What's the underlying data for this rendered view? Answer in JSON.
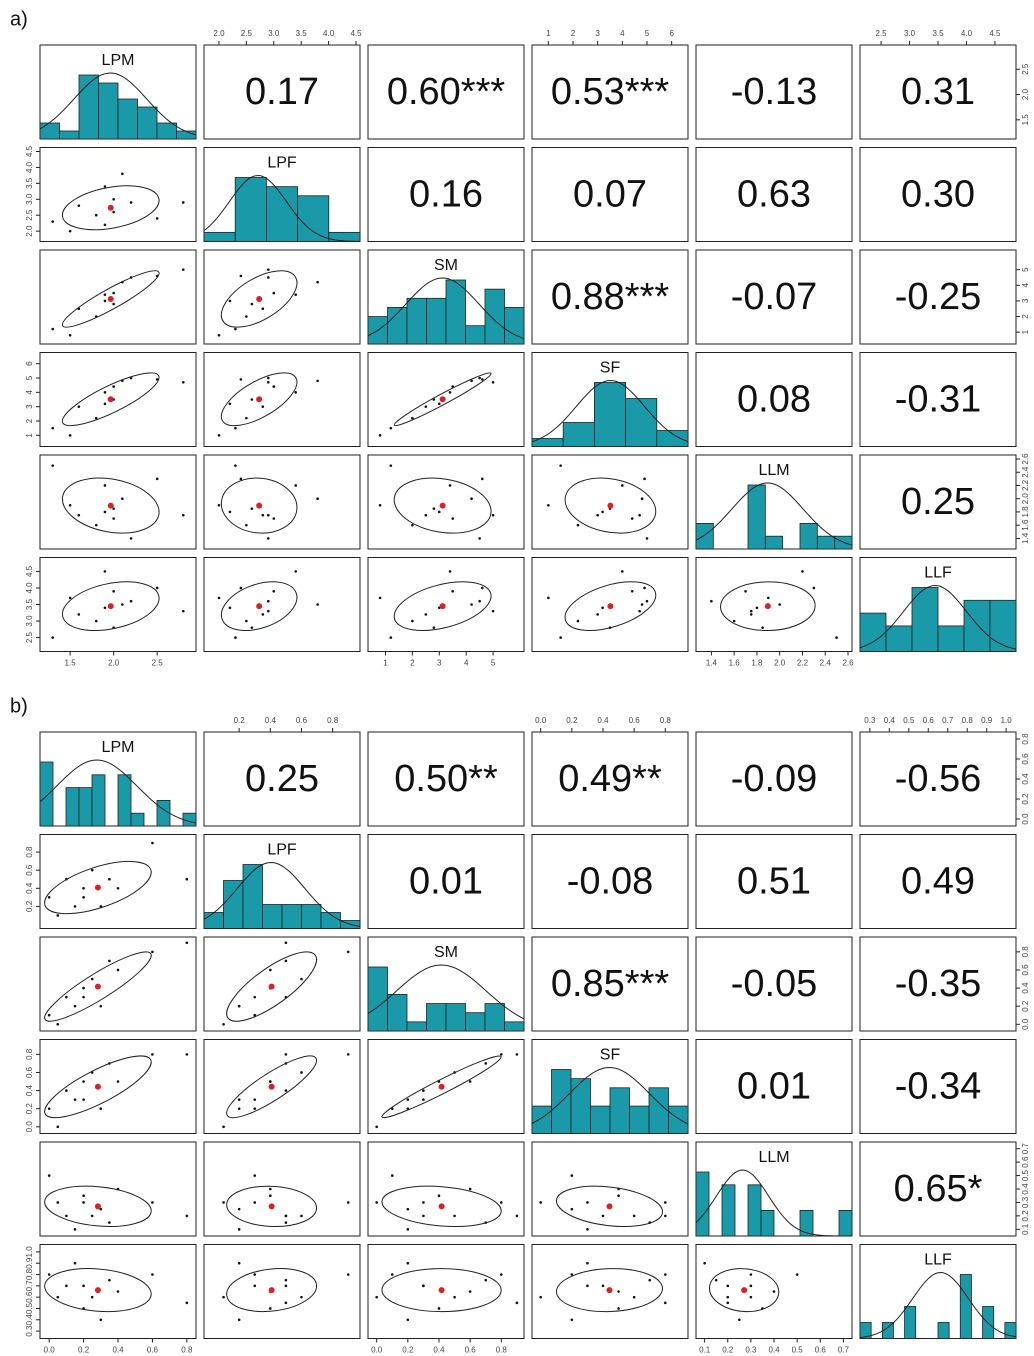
{
  "panels": [
    {
      "label": "a)",
      "variables": [
        {
          "name": "LPM",
          "lim": [
            1.2,
            2.9
          ],
          "ticks": [
            {
              "value": 1.5,
              "label": "1.5"
            },
            {
              "value": 2,
              "label": "2.0"
            },
            {
              "value": 2.5,
              "label": "2.5"
            }
          ],
          "values": [
            1.3,
            1.5,
            1.6,
            1.8,
            1.9,
            1.9,
            2.0,
            2.0,
            2.1,
            2.2,
            2.5,
            2.8
          ],
          "hist": [
            2,
            1,
            8,
            7,
            5,
            4,
            2,
            1
          ]
        },
        {
          "name": "LPF",
          "lim": [
            1.8,
            4.5
          ],
          "ticks": [
            {
              "value": 2,
              "label": "2.0"
            },
            {
              "value": 2.5,
              "label": "2.5"
            },
            {
              "value": 3,
              "label": "3.0"
            },
            {
              "value": 3.5,
              "label": "3.5"
            },
            {
              "value": 4,
              "label": "4.0"
            },
            {
              "value": 4.5,
              "label": "4.5"
            }
          ],
          "values": [
            2.3,
            2.0,
            2.8,
            2.5,
            3.4,
            2.2,
            3.0,
            2.6,
            3.8,
            2.9,
            2.4,
            2.9
          ],
          "hist": [
            1,
            7,
            6,
            5,
            1
          ]
        },
        {
          "name": "SM",
          "lim": [
            0.5,
            6
          ],
          "ticks": [
            1,
            2,
            3,
            4,
            5
          ],
          "values": [
            1.2,
            0.8,
            2.5,
            2.0,
            3.4,
            3.0,
            3.5,
            2.8,
            4.2,
            4.5,
            4.6,
            5.0
          ],
          "hist": [
            3,
            4,
            5,
            5,
            7,
            2,
            6,
            4
          ]
        },
        {
          "name": "SF",
          "lim": [
            0.5,
            6.5
          ],
          "ticks": [
            1,
            2,
            3,
            4,
            5,
            6
          ],
          "values": [
            1.5,
            1.0,
            3.0,
            2.2,
            4.0,
            3.2,
            4.4,
            3.5,
            4.8,
            5.0,
            4.9,
            4.7
          ],
          "hist": [
            1,
            3,
            8,
            6,
            2
          ]
        },
        {
          "name": "LLM",
          "lim": [
            1.3,
            2.6
          ],
          "ticks": [
            {
              "value": 1.4,
              "label": "1.4"
            },
            {
              "value": 1.6,
              "label": "1.6"
            },
            {
              "value": 1.8,
              "label": "1.8"
            },
            {
              "value": 2,
              "label": "2.0"
            },
            {
              "value": 2.2,
              "label": "2.2"
            },
            {
              "value": 2.4,
              "label": "2.4"
            },
            {
              "value": 2.6,
              "label": "2.6"
            }
          ],
          "values": [
            2.5,
            1.9,
            1.75,
            1.6,
            2.2,
            1.8,
            1.7,
            1.85,
            2.0,
            1.4,
            2.3,
            1.75
          ],
          "hist": [
            2,
            0,
            0,
            5,
            1,
            0,
            2,
            1,
            1
          ]
        },
        {
          "name": "LLF",
          "lim": [
            2.2,
            4.8
          ],
          "ticks": [
            {
              "value": 2.5,
              "label": "2.5"
            },
            {
              "value": 3,
              "label": "3.0"
            },
            {
              "value": 3.5,
              "label": "3.5"
            },
            {
              "value": 4,
              "label": "4.0"
            },
            {
              "value": 4.5,
              "label": "4.5"
            }
          ],
          "values": [
            2.5,
            3.7,
            3.2,
            3.0,
            4.5,
            3.4,
            3.9,
            2.8,
            3.5,
            3.6,
            4.0,
            3.3
          ],
          "hist": [
            3,
            2,
            5,
            2,
            4,
            4
          ]
        }
      ],
      "correlations": [
        [
          "0.17",
          "0.60***",
          "0.53***",
          "-0.13",
          "0.31"
        ],
        [
          "0.16",
          "0.07",
          "0.63",
          "0.30"
        ],
        [
          "0.88***",
          "-0.07",
          "-0.25"
        ],
        [
          "0.08",
          "-0.31"
        ],
        [
          "0.25"
        ]
      ]
    },
    {
      "label": "b)",
      "variables": [
        {
          "name": "LPM",
          "lim": [
            -0.03,
            0.83
          ],
          "ticks": [
            {
              "value": 0,
              "label": "0.0"
            },
            0.2,
            0.4,
            0.6,
            0.8
          ],
          "values": [
            0.0,
            0.05,
            0.1,
            0.15,
            0.2,
            0.2,
            0.25,
            0.3,
            0.35,
            0.4,
            0.6,
            0.8
          ],
          "hist": [
            5,
            0,
            3,
            3,
            4,
            0,
            4,
            1,
            0,
            2,
            0,
            1
          ]
        },
        {
          "name": "LPF",
          "lim": [
            0.0,
            0.95
          ],
          "ticks": [
            0.2,
            0.4,
            0.6,
            0.8
          ],
          "values": [
            0.3,
            0.1,
            0.5,
            0.2,
            0.4,
            0.3,
            0.6,
            0.2,
            0.5,
            0.4,
            0.9,
            0.5
          ],
          "hist": [
            2,
            6,
            8,
            3,
            3,
            3,
            2,
            1
          ]
        },
        {
          "name": "SM",
          "lim": [
            -0.03,
            0.92
          ],
          "ticks": [
            {
              "value": 0,
              "label": "0.0"
            },
            0.2,
            0.4,
            0.6,
            0.8
          ],
          "values": [
            0.1,
            0.0,
            0.3,
            0.2,
            0.4,
            0.3,
            0.5,
            0.2,
            0.7,
            0.6,
            0.8,
            0.9
          ],
          "hist": [
            7,
            4,
            1,
            3,
            3,
            2,
            3,
            1
          ]
        },
        {
          "name": "SF",
          "lim": [
            -0.03,
            0.92
          ],
          "ticks": [
            {
              "value": 0,
              "label": "0.0"
            },
            0.2,
            0.4,
            0.6,
            0.8
          ],
          "values": [
            0.2,
            0.0,
            0.4,
            0.3,
            0.5,
            0.3,
            0.6,
            0.2,
            0.7,
            0.5,
            0.8,
            0.8
          ],
          "hist": [
            3,
            7,
            6,
            3,
            5,
            3,
            5,
            3
          ]
        },
        {
          "name": "LLM",
          "lim": [
            0.08,
            0.72
          ],
          "ticks": [
            0.1,
            0.2,
            0.3,
            0.4,
            0.5,
            0.6,
            0.7
          ],
          "values": [
            0.5,
            0.3,
            0.2,
            0.1,
            0.35,
            0.3,
            0.2,
            0.25,
            0.15,
            0.4,
            0.3,
            0.2
          ],
          "hist": [
            5,
            0,
            4,
            0,
            4,
            2,
            0,
            0,
            2,
            0,
            0,
            2
          ]
        },
        {
          "name": "LLF",
          "lim": [
            0.27,
            1.03
          ],
          "ticks": [
            0.3,
            0.4,
            0.5,
            0.6,
            0.7,
            0.8,
            0.9,
            {
              "value": 1,
              "label": "1.0"
            }
          ],
          "values": [
            0.8,
            0.6,
            0.7,
            0.9,
            0.5,
            0.7,
            0.6,
            0.4,
            0.75,
            0.65,
            0.8,
            0.55
          ],
          "hist": [
            2,
            0,
            2,
            0,
            4,
            0,
            0,
            2,
            0,
            8,
            0,
            4,
            0,
            2
          ]
        }
      ],
      "correlations": [
        [
          "0.25",
          "0.50**",
          "0.49**",
          "-0.09",
          "-0.56"
        ],
        [
          "0.01",
          "-0.08",
          "0.51",
          "0.49"
        ],
        [
          "0.85***",
          "-0.05",
          "-0.35"
        ],
        [
          "0.01",
          "-0.34"
        ],
        [
          "0.65*"
        ]
      ]
    }
  ]
}
